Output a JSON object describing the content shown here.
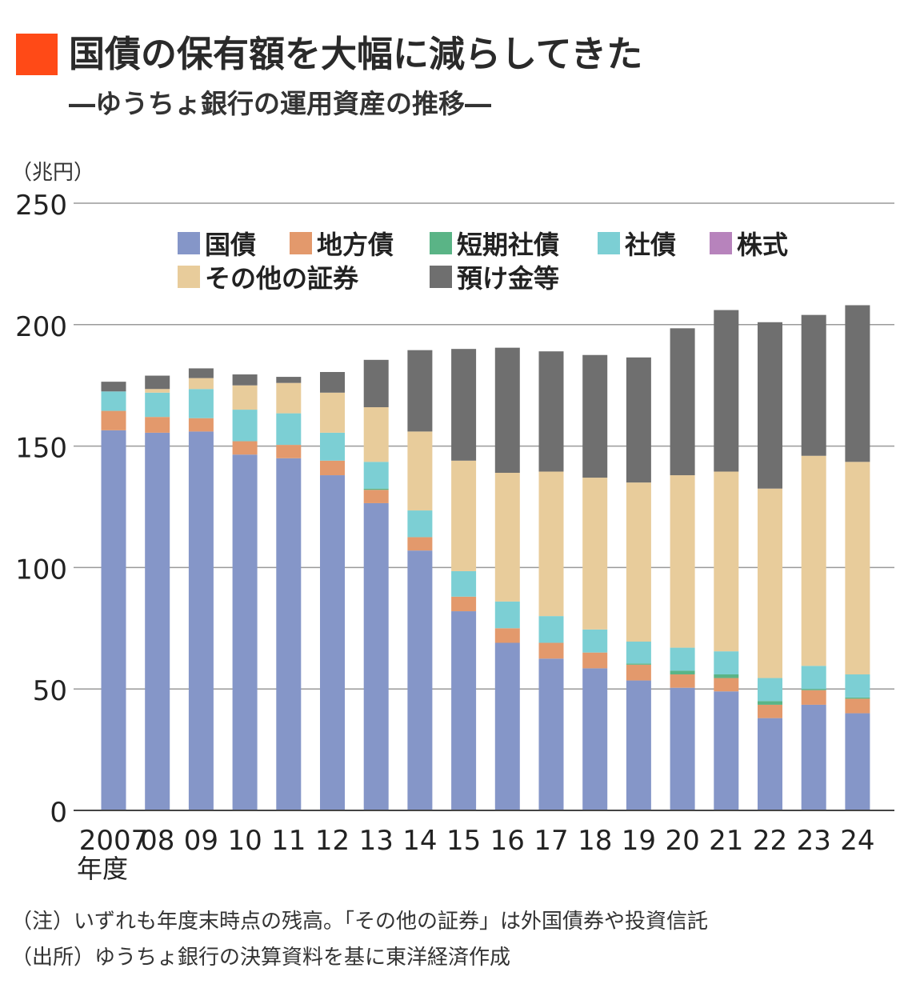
{
  "title": "国債の保有額を大幅に減らしてきた",
  "subtitle": "―ゆうちょ銀行の運用資産の推移―",
  "title_mark_color": "#ff4a17",
  "notes": [
    "（注）いずれも年度末時点の残高。「その他の証券」は外国債券や投資信託",
    "（出所）ゆうちょ銀行の決算資料を基に東洋経済作成"
  ],
  "chart_data": {
    "type": "bar",
    "stacked": true,
    "y_unit_label": "（兆円）",
    "x_unit_label": "年度",
    "ylim": [
      0,
      250
    ],
    "yticks": [
      0,
      50,
      100,
      150,
      200,
      250
    ],
    "grid": true,
    "legend_position": "top-left",
    "categories": [
      "2007",
      "08",
      "09",
      "10",
      "11",
      "12",
      "13",
      "14",
      "15",
      "16",
      "17",
      "18",
      "19",
      "20",
      "21",
      "22",
      "23",
      "24"
    ],
    "series": [
      {
        "name": "国債",
        "color": "#8596c8",
        "values": [
          156.5,
          155.5,
          156,
          146.5,
          145,
          138,
          126.5,
          107,
          82,
          69,
          62.5,
          58.5,
          53.5,
          50.5,
          49,
          38,
          43.5,
          40
        ]
      },
      {
        "name": "地方債",
        "color": "#e3996c",
        "values": [
          8,
          6.5,
          5.5,
          5.5,
          5.5,
          6,
          5.5,
          5.5,
          6,
          6,
          6.5,
          6.5,
          6.5,
          5.5,
          5.5,
          5.5,
          6,
          6
        ]
      },
      {
        "name": "短期社債",
        "color": "#5ab486",
        "values": [
          0,
          0,
          0,
          0,
          0,
          0,
          0.5,
          0,
          0,
          0,
          0,
          0,
          0.5,
          1.5,
          1.5,
          1.5,
          0.5,
          0.5
        ]
      },
      {
        "name": "社債",
        "color": "#7ccfd4",
        "values": [
          8,
          10,
          12,
          13,
          13,
          11.5,
          11,
          11,
          10.5,
          11,
          11,
          9.5,
          9,
          9.5,
          9.5,
          9.5,
          9.5,
          9.5
        ]
      },
      {
        "name": "株式",
        "color": "#b783bc",
        "values": [
          0,
          0,
          0,
          0,
          0,
          0,
          0,
          0,
          0,
          0,
          0,
          0,
          0,
          0,
          0,
          0,
          0,
          0
        ]
      },
      {
        "name": "その他の証券",
        "color": "#e8cc9b",
        "values": [
          0,
          1.5,
          4.5,
          10,
          12.5,
          16.5,
          22.5,
          32.5,
          45.5,
          53,
          59.5,
          62.5,
          65.5,
          71,
          74,
          78,
          86.5,
          87.5
        ]
      },
      {
        "name": "預け金等",
        "color": "#6f6f6f",
        "values": [
          4,
          5.5,
          4,
          4.5,
          2.5,
          8.5,
          19.5,
          33.5,
          46,
          51.5,
          49.5,
          50.5,
          51.5,
          60.5,
          66.5,
          68.5,
          58,
          64.5
        ]
      }
    ]
  }
}
